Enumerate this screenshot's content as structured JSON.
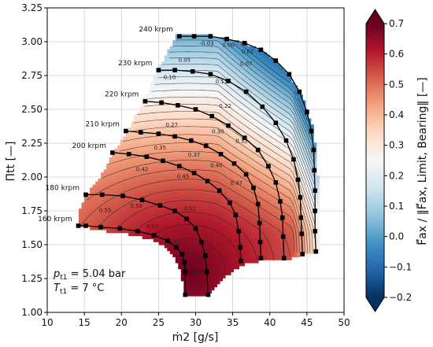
{
  "chart_data": {
    "type": "heatmap",
    "xlabel": "ṁ2 [g/s]",
    "ylabel": "Πtt [—]",
    "colorbar_label": "F⃗ax / ‖F⃗ax, Limit, Bearing‖ [—]",
    "xlim": [
      10,
      50
    ],
    "ylim": [
      1.0,
      3.25
    ],
    "xticks": [
      "10",
      "15",
      "20",
      "25",
      "30",
      "35",
      "40",
      "45",
      "50"
    ],
    "yticks": [
      "1.00",
      "1.25",
      "1.50",
      "1.75",
      "2.00",
      "2.25",
      "2.50",
      "2.75",
      "3.00",
      "3.25"
    ],
    "colorbar_range": [
      -0.2,
      0.7
    ],
    "colorbar_ticks": [
      "0.7",
      "0.6",
      "0.5",
      "0.4",
      "0.3",
      "0.2",
      "0.1",
      "0.0",
      "−0.1",
      "−0.2"
    ],
    "colormap": "RdBu_r",
    "grid": true,
    "speed_lines": [
      {
        "label": "160 krpm",
        "points": [
          [
            14.2,
            1.64
          ],
          [
            15.2,
            1.64
          ],
          [
            17.2,
            1.63
          ],
          [
            19.8,
            1.62
          ],
          [
            22.2,
            1.6
          ],
          [
            24.4,
            1.57
          ],
          [
            26.2,
            1.53
          ],
          [
            27.4,
            1.48
          ],
          [
            28.2,
            1.43
          ],
          [
            28.5,
            1.37
          ],
          [
            28.6,
            1.3
          ],
          [
            28.6,
            1.13
          ]
        ]
      },
      {
        "label": "180 krpm",
        "points": [
          [
            15.2,
            1.87
          ],
          [
            17.4,
            1.87
          ],
          [
            20.2,
            1.86
          ],
          [
            22.8,
            1.83
          ],
          [
            25.2,
            1.79
          ],
          [
            27.2,
            1.75
          ],
          [
            28.8,
            1.69
          ],
          [
            30.0,
            1.62
          ],
          [
            30.8,
            1.52
          ],
          [
            31.3,
            1.42
          ],
          [
            31.5,
            1.3
          ],
          [
            31.7,
            1.13
          ]
        ]
      },
      {
        "label": "200 krpm",
        "points": [
          [
            18.8,
            2.18
          ],
          [
            21.0,
            2.17
          ],
          [
            23.4,
            2.15
          ],
          [
            25.6,
            2.12
          ],
          [
            27.8,
            2.08
          ],
          [
            29.8,
            2.03
          ],
          [
            31.6,
            1.97
          ],
          [
            33.2,
            1.9
          ],
          [
            34.6,
            1.81
          ],
          [
            35.4,
            1.72
          ],
          [
            35.8,
            1.6
          ],
          [
            36.0,
            1.48
          ],
          [
            36.1,
            1.38
          ]
        ]
      },
      {
        "label": "210 krpm",
        "points": [
          [
            20.6,
            2.34
          ],
          [
            22.6,
            2.33
          ],
          [
            25.0,
            2.32
          ],
          [
            27.2,
            2.3
          ],
          [
            29.4,
            2.27
          ],
          [
            31.4,
            2.23
          ],
          [
            33.4,
            2.17
          ],
          [
            35.2,
            2.1
          ],
          [
            36.8,
            2.02
          ],
          [
            37.8,
            1.92
          ],
          [
            38.4,
            1.8
          ],
          [
            38.6,
            1.66
          ],
          [
            38.7,
            1.52
          ],
          [
            38.8,
            1.4
          ]
        ]
      },
      {
        "label": "220 krpm",
        "points": [
          [
            23.2,
            2.56
          ],
          [
            25.4,
            2.55
          ],
          [
            27.6,
            2.53
          ],
          [
            30.0,
            2.5
          ],
          [
            32.2,
            2.45
          ],
          [
            34.4,
            2.38
          ],
          [
            36.6,
            2.29
          ],
          [
            38.4,
            2.2
          ],
          [
            39.8,
            2.08
          ],
          [
            40.8,
            1.96
          ],
          [
            41.4,
            1.82
          ],
          [
            41.7,
            1.7
          ],
          [
            41.8,
            1.56
          ],
          [
            41.9,
            1.4
          ]
        ]
      },
      {
        "label": "230 krpm",
        "points": [
          [
            25.0,
            2.79
          ],
          [
            27.2,
            2.79
          ],
          [
            29.6,
            2.78
          ],
          [
            32.0,
            2.76
          ],
          [
            34.4,
            2.71
          ],
          [
            36.8,
            2.63
          ],
          [
            39.0,
            2.52
          ],
          [
            40.8,
            2.4
          ],
          [
            42.2,
            2.27
          ],
          [
            43.2,
            2.13
          ],
          [
            43.8,
            1.98
          ],
          [
            44.1,
            1.85
          ],
          [
            44.2,
            1.7
          ],
          [
            44.3,
            1.58
          ],
          [
            44.4,
            1.43
          ]
        ]
      },
      {
        "label": "240 krpm",
        "points": [
          [
            27.8,
            3.04
          ],
          [
            29.8,
            3.04
          ],
          [
            32.0,
            3.04
          ],
          [
            34.2,
            3.02
          ],
          [
            36.6,
            2.99
          ],
          [
            38.8,
            2.94
          ],
          [
            40.8,
            2.86
          ],
          [
            42.6,
            2.76
          ],
          [
            44.0,
            2.63
          ],
          [
            45.0,
            2.48
          ],
          [
            45.6,
            2.34
          ],
          [
            45.9,
            2.2
          ],
          [
            46.0,
            2.05
          ],
          [
            46.1,
            1.9
          ],
          [
            46.1,
            1.75
          ],
          [
            46.1,
            1.6
          ],
          [
            46.2,
            1.45
          ]
        ]
      }
    ],
    "contour_levels": [
      "-0.03",
      "0.00",
      "0.02",
      "0.05",
      "0.07",
      "0.10",
      "0.15",
      "0.22",
      "0.27",
      "0.30",
      "0.32",
      "0.35",
      "0.37",
      "0.40",
      "0.42",
      "0.45",
      "0.47",
      "0.50",
      "0.52",
      "0.55",
      "0.57",
      "0.62",
      "0.65"
    ],
    "annotations": [
      "p_t1 = 5.04 bar",
      "T_t1 = 7 °C"
    ]
  },
  "annotations": {
    "pressure": "p",
    "pressure_sub": "t1",
    "pressure_value": " = 5.04 bar",
    "temperature": "T",
    "temperature_sub": "t1",
    "temperature_value": " = 7 °C"
  }
}
